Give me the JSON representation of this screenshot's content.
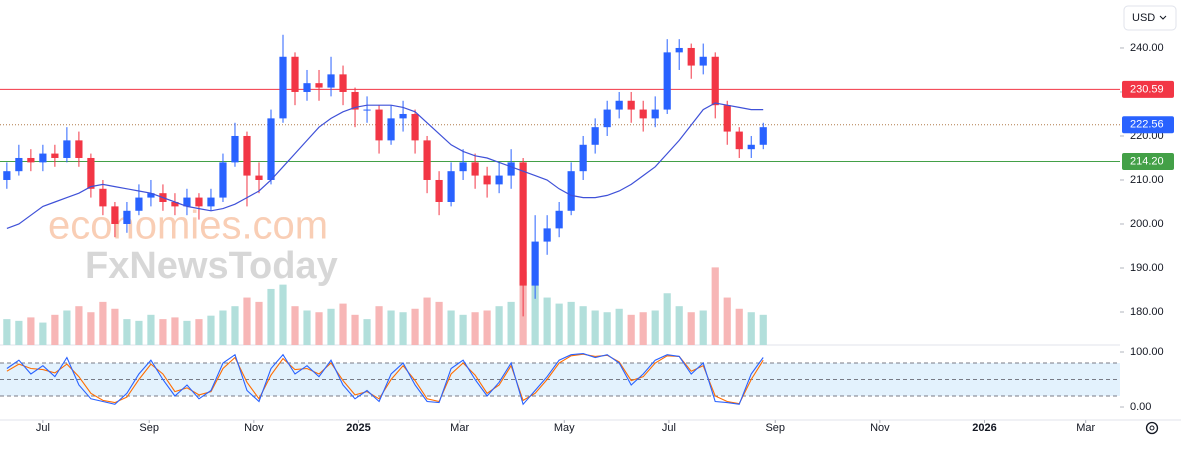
{
  "chart_data": {
    "type": "candlestick",
    "currency": "USD",
    "watermark": [
      "economies.com",
      "FxNewsToday"
    ],
    "x": [
      "2024-06-10",
      "2024-06-17",
      "2024-06-24",
      "2024-07-01",
      "2024-07-08",
      "2024-07-15",
      "2024-07-22",
      "2024-07-29",
      "2024-08-05",
      "2024-08-12",
      "2024-08-19",
      "2024-08-26",
      "2024-09-02",
      "2024-09-09",
      "2024-09-16",
      "2024-09-23",
      "2024-09-30",
      "2024-10-07",
      "2024-10-14",
      "2024-10-21",
      "2024-10-28",
      "2024-11-04",
      "2024-11-11",
      "2024-11-18",
      "2024-11-25",
      "2024-12-02",
      "2024-12-09",
      "2024-12-16",
      "2024-12-23",
      "2024-12-30",
      "2025-01-06",
      "2025-01-13",
      "2025-01-20",
      "2025-01-27",
      "2025-02-03",
      "2025-02-10",
      "2025-02-17",
      "2025-02-24",
      "2025-03-03",
      "2025-03-10",
      "2025-03-17",
      "2025-03-24",
      "2025-03-31",
      "2025-04-07",
      "2025-04-14",
      "2025-04-21",
      "2025-04-28",
      "2025-05-05",
      "2025-05-12",
      "2025-05-19",
      "2025-05-26",
      "2025-06-02",
      "2025-06-09",
      "2025-06-16",
      "2025-06-23",
      "2025-06-30",
      "2025-07-07",
      "2025-07-14",
      "2025-07-21",
      "2025-07-28",
      "2025-08-04",
      "2025-08-11",
      "2025-08-18",
      "2025-08-25"
    ],
    "open": [
      210,
      212,
      215,
      214,
      216,
      215,
      219,
      215,
      208,
      204,
      200,
      203,
      206,
      207,
      205,
      204,
      206,
      204,
      206,
      214,
      220,
      211,
      210,
      224,
      238,
      230,
      232,
      231,
      234,
      230,
      226,
      226,
      219,
      224,
      225,
      219,
      210,
      205,
      212,
      214,
      211,
      209,
      211,
      214,
      186,
      196,
      199,
      203,
      212,
      218,
      222,
      226,
      228,
      226,
      224,
      226,
      239,
      240,
      236,
      238,
      227,
      221,
      217,
      218
    ],
    "high": [
      214,
      218,
      217,
      218,
      218,
      222,
      221,
      216,
      210,
      205,
      205,
      209,
      210,
      209,
      207,
      208,
      207,
      208,
      216,
      223,
      221,
      214,
      226,
      243,
      239,
      235,
      235,
      238,
      236,
      231,
      229,
      227,
      227,
      228,
      226,
      220,
      212,
      214,
      217,
      216,
      213,
      214,
      217,
      215,
      202,
      202,
      205,
      214,
      220,
      224,
      228,
      230,
      230,
      228,
      229,
      242,
      242,
      241,
      241,
      239,
      228,
      222,
      220,
      223
    ],
    "low": [
      208,
      211,
      212,
      212,
      213,
      214,
      213,
      206,
      202,
      197,
      198,
      202,
      204,
      203,
      202,
      202,
      201,
      203,
      205,
      213,
      204,
      207,
      209,
      223,
      227,
      228,
      228,
      229,
      227,
      222,
      223,
      216,
      218,
      221,
      216,
      207,
      202,
      204,
      210,
      208,
      206,
      207,
      208,
      179,
      183,
      193,
      197,
      202,
      210,
      216,
      220,
      224,
      223,
      221,
      222,
      225,
      235,
      233,
      234,
      224,
      218,
      215,
      215,
      217
    ],
    "close": [
      212,
      215,
      214,
      216,
      215,
      219,
      215,
      208,
      204,
      200,
      203,
      206,
      207,
      205,
      204,
      206,
      204,
      206,
      214,
      220,
      211,
      210,
      224,
      238,
      230,
      232,
      231,
      234,
      230,
      226,
      226,
      219,
      224,
      225,
      219,
      210,
      205,
      212,
      214,
      211,
      209,
      211,
      214,
      186,
      196,
      199,
      203,
      212,
      218,
      222,
      226,
      228,
      226,
      224,
      226,
      239,
      240,
      236,
      238,
      227,
      221,
      217,
      218,
      222
    ],
    "up_color": "#2962ff",
    "down_color": "#f23645",
    "xlim": [
      "2024-06-06",
      "2026-03-21"
    ],
    "xticks": [
      {
        "value": "2024-07-01",
        "label": "Jul"
      },
      {
        "value": "2024-09-01",
        "label": "Sep"
      },
      {
        "value": "2024-11-01",
        "label": "Nov"
      },
      {
        "value": "2025-01-01",
        "label": "2025"
      },
      {
        "value": "2025-03-01",
        "label": "Mar"
      },
      {
        "value": "2025-05-01",
        "label": "May"
      },
      {
        "value": "2025-07-01",
        "label": "Jul"
      },
      {
        "value": "2025-09-01",
        "label": "Sep"
      },
      {
        "value": "2025-11-01",
        "label": "Nov"
      },
      {
        "value": "2026-01-01",
        "label": "2026"
      },
      {
        "value": "2026-03-01",
        "label": "Mar"
      }
    ],
    "ylim": [
      172.5,
      250.9
    ],
    "yticks": [
      {
        "value": 180,
        "label": "180.00"
      },
      {
        "value": 190,
        "label": "190.00"
      },
      {
        "value": 200,
        "label": "200.00"
      },
      {
        "value": 210,
        "label": "210.00"
      },
      {
        "value": 220,
        "label": "220.00"
      },
      {
        "value": 230,
        "label": "230.00"
      },
      {
        "value": 240,
        "label": "240.00"
      }
    ],
    "levels": [
      {
        "value": 230.59,
        "label": "230.59",
        "color": "#f23645",
        "style": "solid"
      },
      {
        "value": 222.56,
        "label": "222.56",
        "color": "#2962ff",
        "style": "dotted"
      },
      {
        "value": 214.2,
        "label": "214.20",
        "color": "#43a047",
        "style": "solid"
      }
    ],
    "ma": {
      "color": "#3f51d8",
      "values": [
        199,
        200,
        202,
        204,
        205,
        206,
        207,
        208.5,
        209,
        208.5,
        208,
        207.5,
        207,
        206,
        205,
        204,
        203.5,
        203,
        203.5,
        204.5,
        206,
        207.5,
        210,
        213,
        216,
        219,
        222,
        224,
        225.5,
        226.5,
        227,
        227,
        227,
        226.5,
        225.5,
        223,
        220.5,
        218,
        216.5,
        215.5,
        215,
        214,
        213,
        212,
        211,
        210,
        208,
        206.5,
        206,
        206,
        206.5,
        207.5,
        209,
        211,
        213,
        216,
        219,
        222.5,
        226,
        227.5,
        227,
        226.5,
        226,
        226
      ]
    },
    "volume": {
      "ylim": [
        0,
        400
      ],
      "up_color": "#b2dfdb",
      "down_color": "#f7b6b6",
      "values": [
        30,
        28,
        32,
        26,
        35,
        40,
        45,
        38,
        50,
        42,
        30,
        28,
        35,
        30,
        32,
        28,
        30,
        34,
        40,
        45,
        55,
        50,
        65,
        70,
        45,
        40,
        38,
        42,
        48,
        35,
        30,
        45,
        40,
        38,
        42,
        55,
        50,
        40,
        35,
        38,
        40,
        45,
        50,
        85,
        70,
        55,
        48,
        50,
        45,
        40,
        38,
        42,
        35,
        38,
        40,
        60,
        45,
        38,
        40,
        90,
        55,
        42,
        38,
        35
      ]
    },
    "stochastic": {
      "ylim": [
        -23.6,
        112.7
      ],
      "yticks": [
        {
          "value": 0,
          "label": "0.00"
        },
        {
          "value": 100,
          "label": "100.00"
        }
      ],
      "levels": [
        20,
        50,
        80
      ],
      "band_color": "#e3f2fd",
      "k": {
        "color": "#2962ff",
        "values": [
          70,
          85,
          60,
          75,
          55,
          90,
          40,
          15,
          10,
          5,
          25,
          60,
          85,
          50,
          20,
          40,
          15,
          30,
          80,
          95,
          30,
          10,
          70,
          95,
          60,
          75,
          55,
          85,
          40,
          15,
          30,
          10,
          60,
          80,
          40,
          10,
          8,
          70,
          85,
          50,
          20,
          45,
          80,
          5,
          30,
          55,
          85,
          95,
          97,
          90,
          95,
          80,
          40,
          60,
          85,
          95,
          92,
          60,
          80,
          10,
          8,
          5,
          60,
          90
        ]
      },
      "d": {
        "color": "#ff6d00",
        "values": [
          65,
          78,
          70,
          68,
          62,
          78,
          55,
          25,
          12,
          8,
          18,
          50,
          78,
          60,
          28,
          35,
          22,
          28,
          70,
          90,
          45,
          15,
          58,
          88,
          68,
          70,
          60,
          80,
          48,
          22,
          28,
          15,
          50,
          75,
          48,
          15,
          10,
          60,
          80,
          58,
          25,
          40,
          75,
          12,
          25,
          50,
          80,
          93,
          96,
          92,
          94,
          82,
          48,
          55,
          80,
          93,
          92,
          65,
          75,
          20,
          10,
          6,
          50,
          85
        ]
      }
    }
  }
}
